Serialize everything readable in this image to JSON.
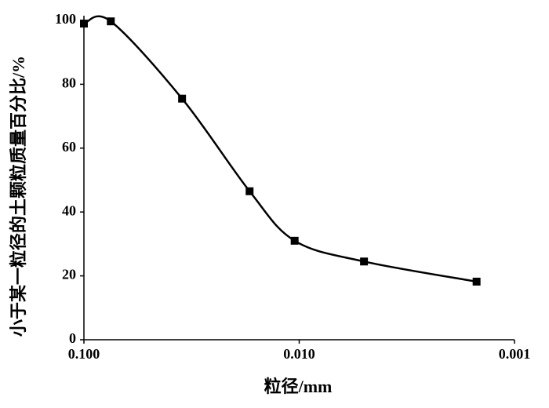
{
  "chart_data": {
    "type": "line",
    "x_label": "粒径/mm",
    "y_label": "小于某一粒径的土颗粒质量百分比/%",
    "x": [
      0.1,
      0.075,
      0.035,
      0.017,
      0.0105,
      0.005,
      0.0015
    ],
    "series": [
      {
        "color": "#000000",
        "values": [
          99,
          99.7,
          75.5,
          46.5,
          31,
          24.5,
          18.2
        ]
      }
    ],
    "xscale": "log",
    "xlim": [
      0.1,
      0.001
    ],
    "xticks": [
      {
        "value": 0.1,
        "label": "0.100"
      },
      {
        "value": 0.01,
        "label": "0.010"
      },
      {
        "value": 0.001,
        "label": "0.001"
      }
    ],
    "ylim": [
      0,
      100
    ],
    "yticks": [
      0,
      20,
      40,
      60,
      80,
      100
    ],
    "grid": false
  }
}
